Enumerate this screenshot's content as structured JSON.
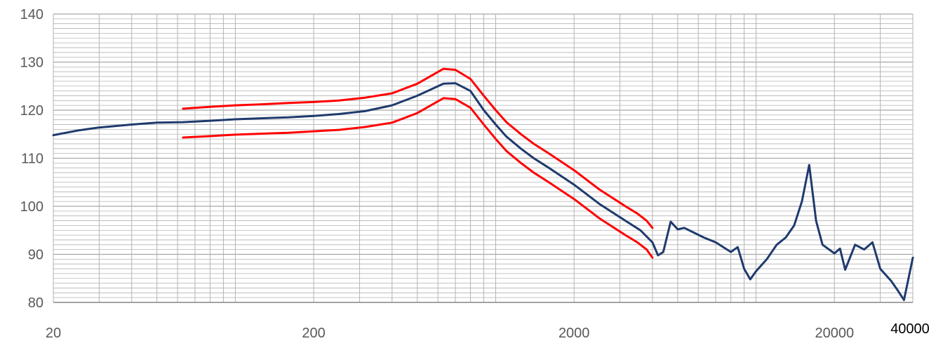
{
  "chart_data": {
    "type": "line",
    "title": "",
    "xlabel": "",
    "ylabel": "",
    "x_scale": "log",
    "xlim": [
      20,
      40000
    ],
    "ylim": [
      80,
      140
    ],
    "grid": true,
    "x_tick_labels": [
      "20",
      "200",
      "2000",
      "20000",
      "40000"
    ],
    "y_tick_labels": [
      "80",
      "90",
      "100",
      "110",
      "120",
      "130",
      "140"
    ],
    "colors": {
      "measured": "#1f3a6e",
      "limits": "#ff0000",
      "grid": "#b3b3b3",
      "axis_text": "#595959"
    },
    "series": [
      {
        "key": "measured",
        "x": [
          20,
          25,
          30,
          40,
          50,
          63,
          80,
          100,
          125,
          160,
          200,
          250,
          315,
          400,
          500,
          630,
          700,
          800,
          900,
          1000,
          1100,
          1250,
          1400,
          1600,
          2000,
          2500,
          3150,
          3600,
          4000,
          4200,
          4400,
          4700,
          5000,
          5300,
          6300,
          7000,
          8000,
          8500,
          9000,
          9500,
          10000,
          11000,
          12000,
          13000,
          14000,
          15000,
          16000,
          17000,
          18000,
          20000,
          21000,
          22000,
          24000,
          26000,
          28000,
          30000,
          33000,
          35000,
          37000,
          40000
        ],
        "y": [
          114.8,
          115.8,
          116.4,
          117.0,
          117.4,
          117.5,
          117.8,
          118.1,
          118.3,
          118.5,
          118.8,
          119.2,
          119.8,
          121.0,
          123.0,
          125.5,
          125.6,
          124.0,
          120.0,
          117.0,
          114.5,
          112.0,
          110.0,
          108.0,
          104.5,
          100.5,
          97.0,
          95.0,
          92.5,
          89.8,
          90.5,
          96.8,
          95.2,
          95.5,
          93.5,
          92.5,
          90.5,
          91.5,
          87.0,
          84.8,
          86.5,
          89.0,
          92.0,
          93.5,
          96.0,
          101.0,
          108.6,
          97.0,
          92.0,
          90.2,
          91.2,
          86.8,
          92.0,
          91.0,
          92.5,
          87.0,
          84.5,
          82.5,
          80.5,
          89.3
        ]
      },
      {
        "key": "upper",
        "x": [
          63,
          80,
          100,
          125,
          160,
          200,
          250,
          315,
          400,
          500,
          630,
          700,
          800,
          900,
          1000,
          1100,
          1250,
          1400,
          1600,
          2000,
          2500,
          3150,
          3500,
          3800,
          4000
        ],
        "y": [
          120.3,
          120.7,
          121.0,
          121.2,
          121.5,
          121.7,
          122.0,
          122.6,
          123.5,
          125.5,
          128.6,
          128.4,
          126.5,
          123.0,
          120.0,
          117.5,
          115.0,
          113.0,
          111.0,
          107.5,
          103.5,
          100.0,
          98.5,
          97.0,
          95.5
        ]
      },
      {
        "key": "lower",
        "x": [
          63,
          80,
          100,
          125,
          160,
          200,
          250,
          315,
          400,
          500,
          630,
          700,
          800,
          900,
          1000,
          1100,
          1250,
          1400,
          1600,
          2000,
          2500,
          3150,
          3500,
          3800,
          4000
        ],
        "y": [
          114.3,
          114.6,
          114.9,
          115.1,
          115.3,
          115.6,
          115.9,
          116.5,
          117.4,
          119.4,
          122.5,
          122.3,
          120.5,
          117.0,
          114.0,
          111.5,
          109.0,
          107.0,
          105.0,
          101.5,
          97.5,
          94.0,
          92.5,
          91.0,
          89.3
        ]
      }
    ]
  }
}
